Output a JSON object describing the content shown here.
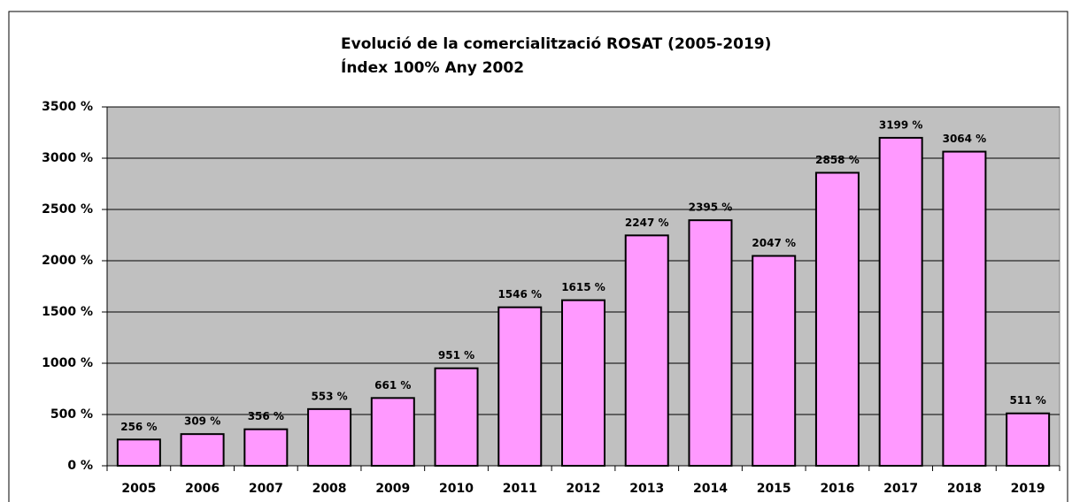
{
  "chart_data": {
    "type": "bar",
    "title": "Evolució de la comercialització ROSAT (2005-2019)",
    "subtitle": "Índex 100% Any 2002",
    "categories": [
      "2005",
      "2006",
      "2007",
      "2008",
      "2009",
      "2010",
      "2011",
      "2012",
      "2013",
      "2014",
      "2015",
      "2016",
      "2017",
      "2018",
      "2019"
    ],
    "values": [
      256,
      309,
      356,
      553,
      661,
      951,
      1546,
      1615,
      2247,
      2395,
      2047,
      2858,
      3199,
      3064,
      511
    ],
    "value_labels": [
      "256 %",
      "309 %",
      "356 %",
      "553 %",
      "661 %",
      "951 %",
      "1546 %",
      "1615 %",
      "2247 %",
      "2395 %",
      "2047 %",
      "2858 %",
      "3199 %",
      "3064 %",
      "511 %"
    ],
    "color": "#ff99ff",
    "ylim": [
      0,
      3500
    ],
    "yticks": [
      {
        "value": 0,
        "label": "0 %"
      },
      {
        "value": 500,
        "label": "500 %"
      },
      {
        "value": 1000,
        "label": "1000 %"
      },
      {
        "value": 1500,
        "label": "1500 %"
      },
      {
        "value": 2000,
        "label": "2000 %"
      },
      {
        "value": 2500,
        "label": "2500 %"
      },
      {
        "value": 3000,
        "label": "3000 %"
      },
      {
        "value": 3500,
        "label": "3500 %"
      }
    ],
    "grid": true
  }
}
